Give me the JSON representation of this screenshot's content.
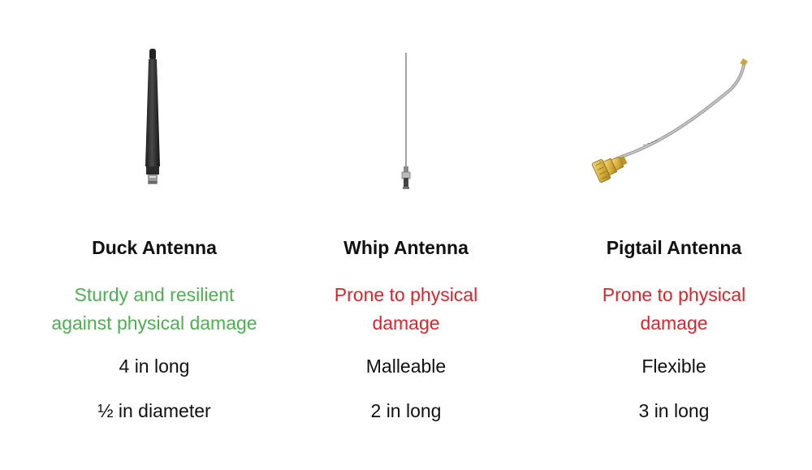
{
  "antennas": [
    {
      "image_icon": "duck-antenna-icon",
      "title": "Duck Antenna",
      "durability_lines": [
        "Sturdy and resilient",
        "against physical damage"
      ],
      "durability_color": "#4caf50",
      "spec1": "4 in long",
      "spec2": "½ in diameter"
    },
    {
      "image_icon": "whip-antenna-icon",
      "title": "Whip Antenna",
      "durability_lines": [
        "Prone to physical",
        "damage"
      ],
      "durability_color": "#d9262c",
      "spec1": "Malleable",
      "spec2": "2 in long"
    },
    {
      "image_icon": "pigtail-antenna-icon",
      "title": "Pigtail Antenna",
      "durability_lines": [
        "Prone to physical",
        "damage"
      ],
      "durability_color": "#d9262c",
      "spec1": "Flexible",
      "spec2": "3 in long"
    }
  ]
}
